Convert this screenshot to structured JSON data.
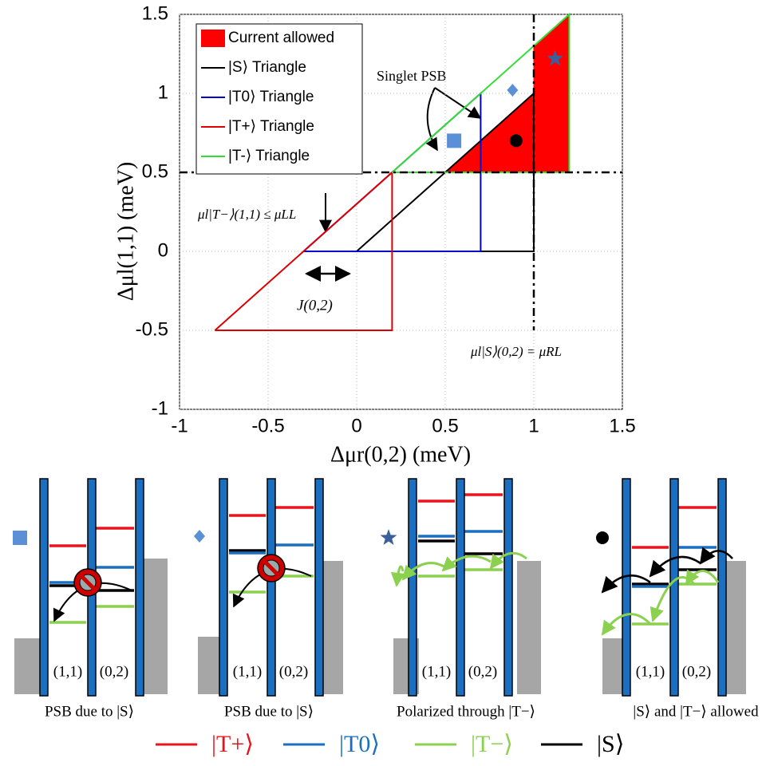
{
  "chart_data": {
    "type": "line",
    "xlabel": "Δμr(0,2) (meV)",
    "ylabel": "Δμl(1,1) (meV)",
    "xlim": [
      -1,
      1.5
    ],
    "ylim": [
      -1,
      1.5
    ],
    "xticks": [
      -1,
      -0.5,
      0,
      0.5,
      1,
      1.5
    ],
    "yticks": [
      -1,
      -0.5,
      0,
      0.5,
      1,
      1.5
    ],
    "grid": true,
    "legend": "upper left",
    "series": [
      {
        "name": "Current allowed",
        "color": "#ff0000",
        "fill": true,
        "x": [
          0.5,
          1,
          1,
          1.2,
          1.2,
          0.5
        ],
        "values": [
          0.5,
          1,
          1.3,
          1.5,
          0.5,
          0.5
        ]
      },
      {
        "name": "|S⟩ Triangle",
        "color": "#000000",
        "x": [
          0,
          1,
          1,
          0
        ],
        "values": [
          0,
          1,
          0,
          0
        ]
      },
      {
        "name": "|T0⟩ Triangle",
        "color": "#0000cc",
        "x": [
          -0.3,
          0.7,
          0.7,
          -0.3
        ],
        "values": [
          0,
          1,
          0,
          0
        ]
      },
      {
        "name": "|T+⟩ Triangle",
        "color": "#dd0000",
        "x": [
          -0.8,
          0.2,
          0.2,
          -0.8
        ],
        "values": [
          -0.5,
          0.5,
          -0.5,
          -0.5
        ]
      },
      {
        "name": "|T-⟩ Triangle",
        "color": "#33dd33",
        "x": [
          0.2,
          1.2,
          1.2,
          0.2
        ],
        "values": [
          0.5,
          1.5,
          0.5,
          0.5
        ]
      }
    ],
    "reference_lines": [
      {
        "x": [
          -1,
          1.5
        ],
        "values": [
          0.5,
          0.5
        ]
      },
      {
        "x": [
          1,
          1
        ],
        "values": [
          1.5,
          -0.5
        ]
      }
    ],
    "markers": [
      {
        "shape": "square",
        "color": "#5b8fd6",
        "x": 0.55,
        "y": 0.7
      },
      {
        "shape": "diamond",
        "color": "#5b8fd6",
        "x": 0.88,
        "y": 1.02
      },
      {
        "shape": "star",
        "color": "#3a5f9a",
        "x": 1.12,
        "y": 1.22
      },
      {
        "shape": "circle",
        "color": "#000000",
        "x": 0.9,
        "y": 0.7
      }
    ],
    "annotations": [
      "Singlet PSB",
      "μl|T−⟩(1,1) ≤ μLL",
      "J(0,2)",
      "μl|S⟩(0,2) = μRL"
    ]
  },
  "panels": [
    {
      "caption": "PSB due to |S⟩",
      "left": "(1,1)",
      "right": "(0,2)"
    },
    {
      "caption": "PSB due to |S⟩",
      "left": "(1,1)",
      "right": "(0,2)"
    },
    {
      "caption": "Polarized through |T−⟩",
      "left": "(1,1)",
      "right": "(0,2)"
    },
    {
      "caption": "|S⟩ and |T−⟩ allowed",
      "left": "(1,1)",
      "right": "(0,2)"
    }
  ],
  "level_legend": [
    {
      "name": "|T+⟩",
      "color": "#e8141c"
    },
    {
      "name": "|T0⟩",
      "color": "#1a6fc0"
    },
    {
      "name": "|T−⟩",
      "color": "#8bd04e"
    },
    {
      "name": "|S⟩",
      "color": "#000000"
    }
  ]
}
